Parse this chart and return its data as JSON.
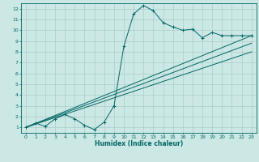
{
  "xlabel": "Humidex (Indice chaleur)",
  "bg_color": "#cce8e4",
  "grid_color": "#aacccc",
  "line_color": "#006666",
  "xlim": [
    -0.5,
    23.5
  ],
  "ylim": [
    0.5,
    12.5
  ],
  "xticks": [
    0,
    1,
    2,
    3,
    4,
    5,
    6,
    7,
    8,
    9,
    10,
    11,
    12,
    13,
    14,
    15,
    16,
    17,
    18,
    19,
    20,
    21,
    22,
    23
  ],
  "yticks": [
    1,
    2,
    3,
    4,
    5,
    6,
    7,
    8,
    9,
    10,
    11,
    12
  ],
  "line1_x": [
    0,
    1,
    2,
    3,
    4,
    5,
    6,
    7,
    8,
    9,
    10,
    11,
    12,
    13,
    14,
    15,
    16,
    17,
    18,
    19,
    20,
    21,
    22,
    23
  ],
  "line1_y": [
    1.0,
    1.4,
    1.1,
    1.8,
    2.2,
    1.8,
    1.2,
    0.8,
    1.5,
    3.0,
    8.5,
    11.5,
    12.3,
    11.8,
    10.7,
    10.3,
    10.0,
    10.1,
    9.3,
    9.8,
    9.5,
    9.5,
    9.5,
    9.5
  ],
  "line2_x": [
    0,
    23
  ],
  "line2_y": [
    1.0,
    9.5
  ],
  "line3_x": [
    0,
    23
  ],
  "line3_y": [
    1.0,
    8.8
  ],
  "line4_x": [
    0,
    23
  ],
  "line4_y": [
    1.0,
    8.0
  ]
}
